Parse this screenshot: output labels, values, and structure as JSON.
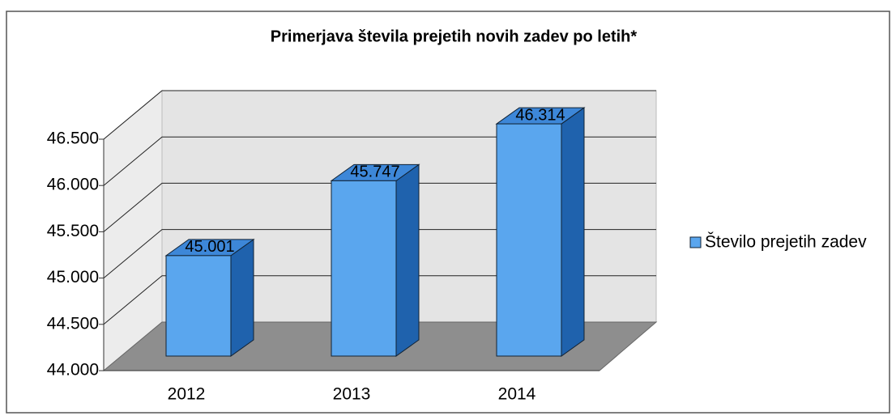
{
  "chart_data": {
    "type": "bar3d",
    "title": "Primerjava števila prejetih novih zadev po letih*",
    "categories": [
      "2012",
      "2013",
      "2014"
    ],
    "series": [
      {
        "name": "Število prejetih zadev",
        "color": "#5aa6ee",
        "values": [
          45001,
          45747,
          46314
        ],
        "value_labels": [
          "45.001",
          "45.747",
          "46.314"
        ]
      }
    ],
    "ylim": [
      44000,
      46500
    ],
    "yticks": [
      {
        "value": 44000,
        "label": "44.000"
      },
      {
        "value": 44500,
        "label": "44.500"
      },
      {
        "value": 45000,
        "label": "45.000"
      },
      {
        "value": 45500,
        "label": "45.500"
      },
      {
        "value": 46000,
        "label": "46.000"
      },
      {
        "value": 46500,
        "label": "46.500"
      }
    ],
    "grid": true,
    "legend": "right"
  }
}
